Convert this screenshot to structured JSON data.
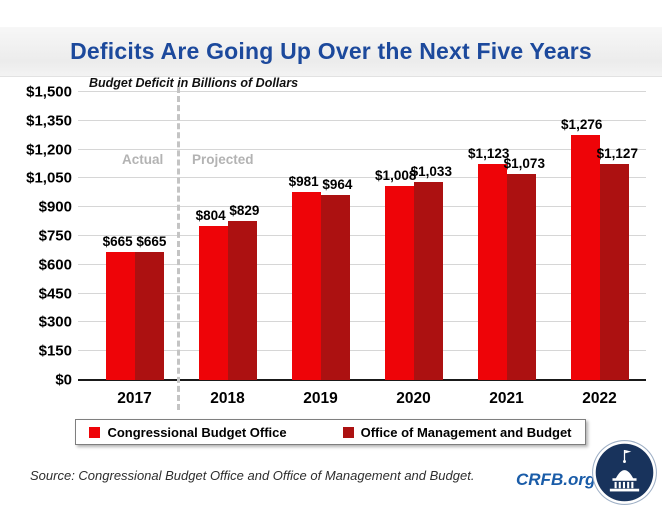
{
  "header": {
    "title": "Deficits Are Going Up Over the Next Five Years"
  },
  "chart_data": {
    "type": "bar",
    "title": "Deficits Are Going Up Over the Next Five Years",
    "subtitle": "Budget Deficit in Billions of Dollars",
    "categories": [
      "2017",
      "2018",
      "2019",
      "2020",
      "2021",
      "2022"
    ],
    "series": [
      {
        "name": "Congressional Budget Office",
        "color": "#ee0408",
        "values": [
          665,
          804,
          981,
          1008,
          1123,
          1276
        ],
        "labels": [
          "$665",
          "$804",
          "$981",
          "$1,008",
          "$1,123",
          "$1,276"
        ]
      },
      {
        "name": "Office of Management and Budget",
        "color": "#ac1111",
        "values": [
          665,
          829,
          964,
          1033,
          1073,
          1127
        ],
        "labels": [
          "$665",
          "$829",
          "$964",
          "$1,033",
          "$1,073",
          "$1,127"
        ]
      }
    ],
    "y_axis": {
      "min": 0,
      "max": 1500,
      "step": 150,
      "tick_labels": [
        "$1,500",
        "$1,350",
        "$1,200",
        "$1,050",
        "$900",
        "$750",
        "$600",
        "$450",
        "$300",
        "$150",
        "$0"
      ]
    },
    "annotations": {
      "actual": "Actual",
      "projected": "Projected"
    },
    "grid": true,
    "legend_position": "bottom"
  },
  "footer": {
    "source": "Source: Congressional Budget Office and Office of Management and Budget.",
    "site": "CRFB.org"
  },
  "colors": {
    "title_blue": "#1c499c",
    "crfb_blue": "#1a5ca8",
    "cbo_red": "#ee0408",
    "omb_dark_red": "#ac1111",
    "phase_gray": "#b3b3b3",
    "gridline_gray": "#d6d6d6",
    "logo_navy": "#18335c"
  }
}
